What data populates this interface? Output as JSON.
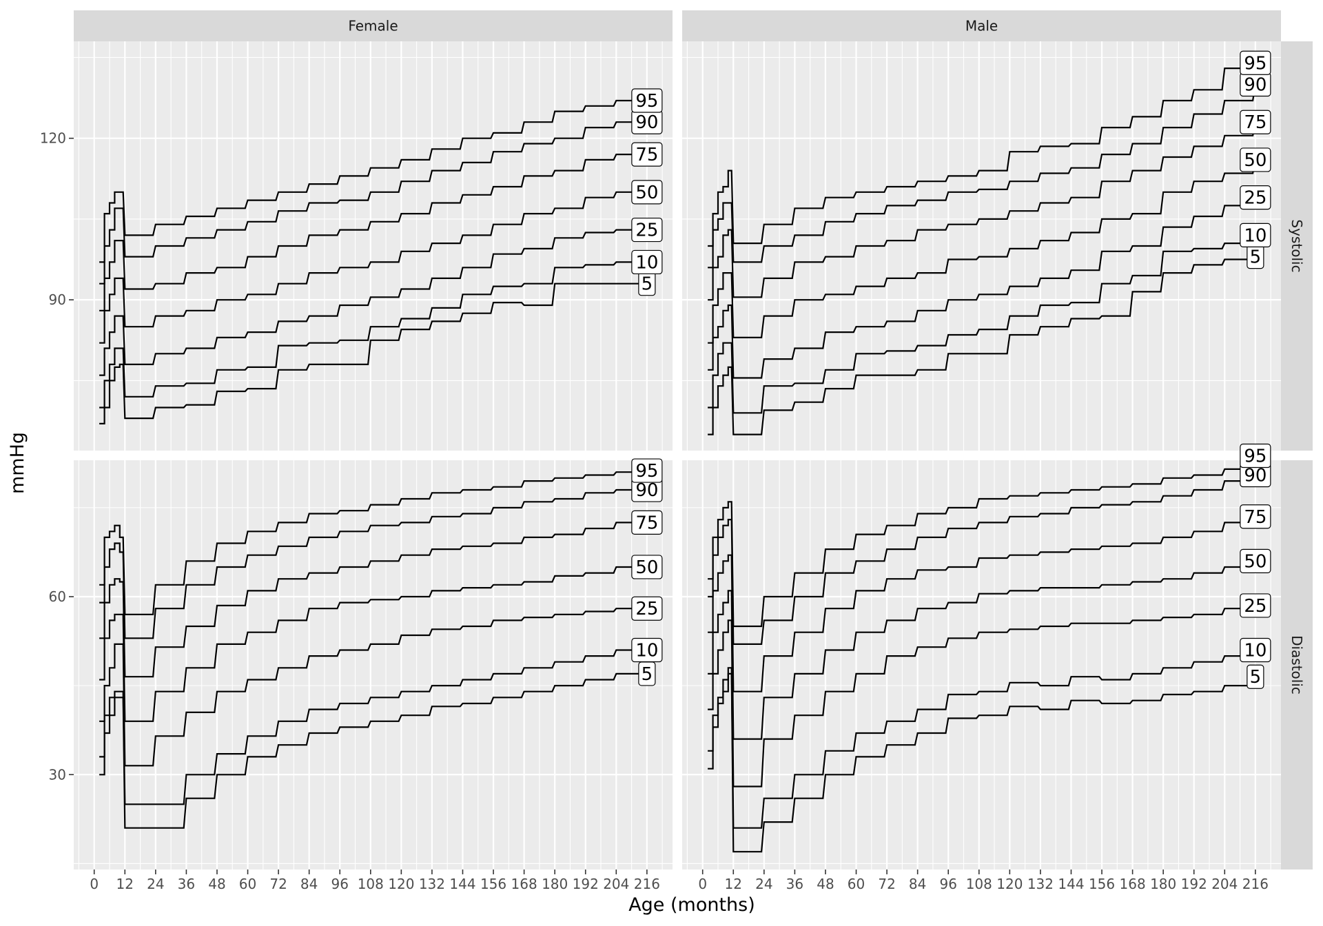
{
  "chart_data": {
    "type": "line",
    "xlabel": "Age (months)",
    "ylabel": "mmHg",
    "x_ticks": [
      0,
      12,
      24,
      36,
      48,
      60,
      72,
      84,
      96,
      108,
      120,
      132,
      144,
      156,
      168,
      180,
      192,
      204,
      216
    ],
    "x_tick_labels": [
      "0",
      "12",
      "24",
      "36",
      "48",
      "60",
      "72",
      "84",
      "96",
      "108",
      "120",
      "132",
      "144",
      "156",
      "168",
      "180",
      "192",
      "204",
      "216"
    ],
    "xlim": [
      -8,
      226
    ],
    "grid": true,
    "x_minor_grid_step": 6,
    "columns": [
      "Female",
      "Male"
    ],
    "rows": [
      "Systolic",
      "Diastolic"
    ],
    "percentiles": [
      "5",
      "10",
      "25",
      "50",
      "75",
      "90",
      "95"
    ],
    "row_axes": [
      {
        "ylim": [
          62,
          138
        ],
        "y_ticks": [
          90,
          120
        ],
        "y_tick_labels": [
          "90",
          "120"
        ]
      },
      {
        "ylim": [
          14,
          83
        ],
        "y_ticks": [
          30,
          60
        ],
        "y_tick_labels": [
          "30",
          "60"
        ]
      }
    ],
    "panels": [
      {
        "column": "Female",
        "row": "Systolic",
        "infant_ages": [
          2,
          4,
          6,
          8,
          10
        ],
        "child_ages": [
          12,
          24,
          36,
          48,
          60,
          72,
          84,
          96,
          108,
          120,
          132,
          144,
          156,
          168,
          180,
          192,
          204,
          216
        ],
        "series": [
          {
            "name": "5",
            "infant": [
              67,
              70,
              75,
              77.5,
              78
            ],
            "child": [
              68,
              70,
              70.5,
              73,
              73.5,
              77,
              78,
              78,
              82.5,
              84.5,
              86,
              87.5,
              89.5,
              89,
              93,
              93,
              93,
              93
            ]
          },
          {
            "name": "10",
            "infant": [
              70,
              75,
              78,
              81,
              81
            ],
            "child": [
              72,
              74,
              74.5,
              77,
              77.5,
              81.5,
              82,
              82.5,
              85,
              86.5,
              88.5,
              91,
              92.5,
              93,
              96,
              96.5,
              97,
              97
            ]
          },
          {
            "name": "25",
            "infant": [
              76,
              81,
              84,
              87,
              87
            ],
            "child": [
              78,
              80,
              81,
              83,
              84,
              86,
              87,
              89,
              90.5,
              92,
              94,
              96,
              98.5,
              99.5,
              101.5,
              102.5,
              103,
              103
            ]
          },
          {
            "name": "50",
            "infant": [
              82,
              88,
              91,
              94,
              94
            ],
            "child": [
              85,
              87,
              88,
              90,
              91,
              93,
              95,
              96,
              97,
              99,
              100.5,
              102,
              104,
              106,
              107,
              109,
              110,
              110
            ]
          },
          {
            "name": "75",
            "infant": [
              88,
              94,
              97,
              101,
              101
            ],
            "child": [
              92,
              93,
              95,
              96,
              98,
              100,
              102,
              103,
              104.5,
              106,
              108,
              109.5,
              111,
              113,
              114,
              116,
              117,
              117
            ]
          },
          {
            "name": "90",
            "infant": [
              93,
              100,
              103,
              107,
              107
            ],
            "child": [
              98,
              100,
              101.5,
              103,
              104.5,
              106.5,
              108,
              108.5,
              110,
              112,
              114,
              115.5,
              117.5,
              119,
              120,
              122,
              123,
              123
            ]
          },
          {
            "name": "95",
            "infant": [
              97,
              106,
              108,
              110,
              110
            ],
            "child": [
              102,
              104,
              105.5,
              107,
              108.5,
              110,
              111.5,
              113,
              114.5,
              116,
              118,
              120,
              121,
              123,
              125,
              126,
              127,
              127
            ]
          }
        ]
      },
      {
        "column": "Male",
        "row": "Systolic",
        "infant_ages": [
          2,
          4,
          6,
          8,
          10
        ],
        "child_ages": [
          12,
          24,
          36,
          48,
          60,
          72,
          84,
          96,
          108,
          120,
          132,
          144,
          156,
          168,
          180,
          192,
          204,
          216
        ],
        "series": [
          {
            "name": "5",
            "infant": [
              65,
              70,
              74,
              76,
              77.5
            ],
            "child": [
              65,
              69.5,
              71,
              73.5,
              76,
              76,
              77,
              80,
              80,
              83.5,
              85,
              86.5,
              87,
              91.5,
              95,
              96.5,
              97.5,
              98
            ]
          },
          {
            "name": "10",
            "infant": [
              70,
              76,
              80,
              82,
              82
            ],
            "child": [
              69,
              74,
              74.5,
              77,
              80,
              80.5,
              81.5,
              83.5,
              84.5,
              87,
              89,
              89.5,
              93,
              94.5,
              99,
              99.5,
              100.5,
              102
            ]
          },
          {
            "name": "25",
            "infant": [
              77,
              83,
              85,
              88,
              89
            ],
            "child": [
              75.5,
              79,
              81,
              84,
              85,
              86,
              88,
              90,
              91,
              92.5,
              94,
              95.5,
              99,
              100,
              103.5,
              105.5,
              107.5,
              109
            ]
          },
          {
            "name": "50",
            "infant": [
              82,
              89,
              92,
              95,
              95
            ],
            "child": [
              83,
              87,
              90,
              91,
              92.5,
              94,
              95,
              97.5,
              98,
              99.5,
              101,
              102.5,
              105,
              106,
              110,
              112,
              113.5,
              116
            ]
          },
          {
            "name": "75",
            "infant": [
              90,
              96,
              98,
              102,
              103
            ],
            "child": [
              90.5,
              94,
              97,
              98,
              100,
              101,
              103,
              104,
              105,
              106.5,
              108,
              109,
              112,
              114,
              116.5,
              118.5,
              120.5,
              123
            ]
          },
          {
            "name": "90",
            "infant": [
              96,
              103,
              105,
              108,
              108
            ],
            "child": [
              97,
              100,
              102,
              104.5,
              106,
              107.5,
              108.5,
              110,
              110.5,
              112,
              113.5,
              114.5,
              117,
              119,
              122,
              124.5,
              127,
              130
            ]
          },
          {
            "name": "95",
            "infant": [
              100,
              106,
              110,
              111,
              114
            ],
            "child": [
              100.5,
              104,
              107,
              109,
              110,
              111,
              112,
              113,
              114,
              117.5,
              118.5,
              119,
              122,
              124,
              127,
              129,
              133,
              134
            ]
          }
        ]
      },
      {
        "column": "Female",
        "row": "Diastolic",
        "infant_ages": [
          2,
          4,
          6,
          8,
          10
        ],
        "child_ages": [
          12,
          24,
          36,
          48,
          60,
          72,
          84,
          96,
          108,
          120,
          132,
          144,
          156,
          168,
          180,
          192,
          204,
          216
        ],
        "series": [
          {
            "name": "5",
            "infant": [
              30,
              37,
              40,
              43,
              43
            ],
            "child": [
              21,
              21,
              26,
              30,
              33,
              35,
              37,
              38,
              39,
              40,
              41.5,
              42,
              43,
              44,
              45,
              46,
              47,
              47
            ]
          },
          {
            "name": "10",
            "infant": [
              33,
              40,
              43,
              44,
              44
            ],
            "child": [
              25,
              25,
              30,
              33.5,
              36.5,
              39,
              41,
              42,
              43,
              44,
              45,
              46,
              47,
              48,
              49,
              50,
              51,
              51
            ]
          },
          {
            "name": "25",
            "infant": [
              39,
              45,
              48,
              52,
              52
            ],
            "child": [
              31.5,
              36.5,
              40.5,
              44,
              46,
              48,
              50,
              51,
              52,
              53.5,
              54.5,
              55,
              56,
              56.5,
              57,
              57.5,
              58,
              58
            ]
          },
          {
            "name": "50",
            "infant": [
              46,
              53,
              56,
              57,
              57
            ],
            "child": [
              39,
              44,
              48,
              52,
              54,
              56,
              58,
              59,
              59.5,
              60,
              61,
              61.5,
              62,
              62.5,
              63.5,
              64,
              65,
              65
            ]
          },
          {
            "name": "75",
            "infant": [
              53,
              59,
              62,
              63,
              62.5
            ],
            "child": [
              46.5,
              51.5,
              55,
              58.5,
              61,
              63,
              64,
              65,
              66,
              67,
              68,
              68.5,
              69,
              70,
              70.5,
              71.5,
              72.5,
              72.5
            ]
          },
          {
            "name": "90",
            "infant": [
              59,
              65,
              68,
              69,
              67.5
            ],
            "child": [
              53,
              58,
              62,
              65,
              67,
              68.5,
              70,
              71,
              72,
              72.5,
              73.5,
              74,
              75,
              76,
              76.5,
              77.5,
              78,
              78
            ]
          },
          {
            "name": "95",
            "infant": [
              62,
              70,
              71,
              72,
              70
            ],
            "child": [
              57,
              62,
              66,
              69,
              71,
              72.5,
              74,
              74.5,
              75.5,
              76.5,
              77.5,
              78,
              78.5,
              79.5,
              80,
              80.5,
              81,
              81
            ]
          }
        ]
      },
      {
        "column": "Male",
        "row": "Diastolic",
        "infant_ages": [
          2,
          4,
          6,
          8,
          10
        ],
        "child_ages": [
          12,
          24,
          36,
          48,
          60,
          72,
          84,
          96,
          108,
          120,
          132,
          144,
          156,
          168,
          180,
          192,
          204,
          216
        ],
        "series": [
          {
            "name": "5",
            "infant": [
              31,
              38,
              42,
              44,
              47
            ],
            "child": [
              17,
              22,
              26,
              30,
              33,
              35,
              37,
              39.5,
              40,
              41.5,
              41,
              42.5,
              42,
              42.5,
              43.5,
              44,
              45,
              46.5
            ]
          },
          {
            "name": "10",
            "infant": [
              34,
              40,
              43,
              46,
              48
            ],
            "child": [
              21,
              26,
              30,
              34,
              37,
              39,
              41,
              43.5,
              44,
              45.5,
              45,
              46.5,
              46,
              47,
              48,
              49,
              50,
              51
            ]
          },
          {
            "name": "25",
            "infant": [
              41,
              47,
              51,
              54,
              56
            ],
            "child": [
              28,
              36,
              40,
              44,
              47,
              50,
              51.5,
              53,
              54,
              54.5,
              55,
              55.5,
              55.5,
              56,
              56.5,
              57,
              58,
              58.5
            ]
          },
          {
            "name": "50",
            "infant": [
              47,
              54,
              57,
              59,
              61
            ],
            "child": [
              36,
              43,
              47,
              51,
              54,
              56,
              58,
              59,
              60.5,
              61,
              61.5,
              61.5,
              62,
              62.5,
              63,
              64,
              65,
              66
            ]
          },
          {
            "name": "75",
            "infant": [
              54,
              61,
              64,
              66,
              67
            ],
            "child": [
              44,
              50,
              54,
              58,
              61,
              63,
              64.5,
              65,
              66.5,
              67,
              67.5,
              68,
              68.5,
              69,
              70,
              71,
              72.5,
              73.5
            ]
          },
          {
            "name": "90",
            "infant": [
              60,
              67,
              70,
              72,
              73
            ],
            "child": [
              52,
              56,
              60,
              64,
              66,
              68,
              70,
              71.5,
              72.5,
              73.5,
              74,
              75,
              75.5,
              76,
              77,
              78,
              79.5,
              80.5
            ]
          },
          {
            "name": "95",
            "infant": [
              63,
              70,
              73,
              75,
              76
            ],
            "child": [
              55,
              60,
              64,
              68,
              70.5,
              72,
              74,
              75,
              76.5,
              77,
              77.5,
              78,
              78.5,
              79,
              80,
              80.5,
              81.5,
              83
            ]
          }
        ]
      }
    ]
  }
}
